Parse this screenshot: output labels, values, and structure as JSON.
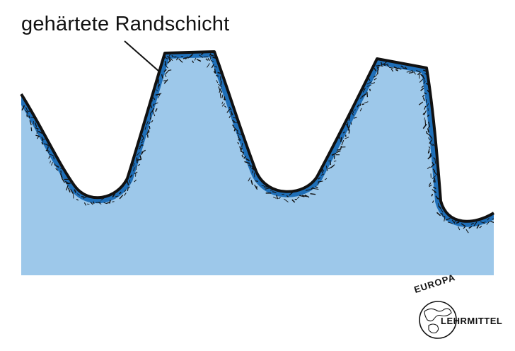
{
  "diagram": {
    "label": "gehärtete Randschicht"
  },
  "logo": {
    "top_text": "EUROPA",
    "bottom_text": "LEHRMITTEL"
  },
  "colors": {
    "core": "#9dc8ea",
    "hardened_layer": "#1f6fb8",
    "outline": "#111111",
    "background": "#ffffff"
  }
}
